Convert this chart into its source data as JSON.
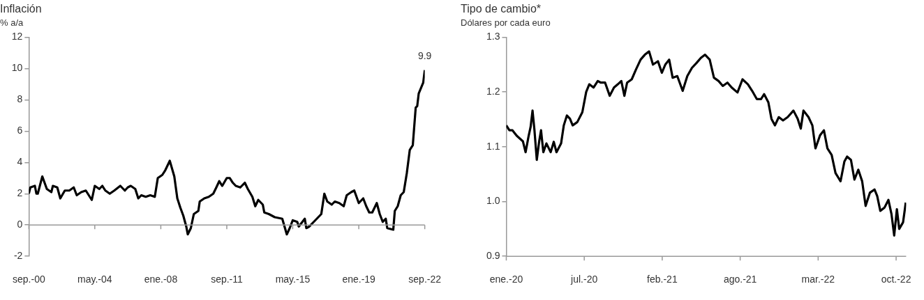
{
  "chart_data": [
    {
      "type": "line",
      "title": "Inflación",
      "subtitle": "% a/a",
      "color": "#000000",
      "x": [
        "2000-09",
        "2000-10",
        "2001-01",
        "2001-02",
        "2001-03",
        "2001-06",
        "2001-09",
        "2001-12",
        "2002-01",
        "2002-04",
        "2002-06",
        "2002-09",
        "2002-12",
        "2003-03",
        "2003-05",
        "2003-08",
        "2003-11",
        "2004-03",
        "2004-05",
        "2004-08",
        "2004-10",
        "2004-12",
        "2005-03",
        "2005-06",
        "2005-10",
        "2006-01",
        "2006-03",
        "2006-05",
        "2006-08",
        "2006-10",
        "2006-12",
        "2007-03",
        "2007-06",
        "2007-09",
        "2007-11",
        "2008-02",
        "2008-04",
        "2008-06",
        "2008-07",
        "2008-10",
        "2008-12",
        "2009-02",
        "2009-04",
        "2009-06",
        "2009-07",
        "2009-09",
        "2009-11",
        "2010-02",
        "2010-03",
        "2010-06",
        "2010-09",
        "2010-12",
        "2011-02",
        "2011-04",
        "2011-06",
        "2011-09",
        "2011-11",
        "2012-01",
        "2012-03",
        "2012-06",
        "2012-09",
        "2012-11",
        "2013-02",
        "2013-04",
        "2013-06",
        "2013-09",
        "2013-10",
        "2014-01",
        "2014-05",
        "2014-10",
        "2015-01",
        "2015-03",
        "2015-05",
        "2015-08",
        "2015-09",
        "2016-01",
        "2016-02",
        "2016-04",
        "2016-07",
        "2016-10",
        "2016-12",
        "2017-02",
        "2017-04",
        "2017-07",
        "2017-09",
        "2017-12",
        "2018-03",
        "2018-05",
        "2018-08",
        "2018-10",
        "2019-01",
        "2019-04",
        "2019-06",
        "2019-08",
        "2019-10",
        "2020-01",
        "2020-03",
        "2020-05",
        "2020-07",
        "2020-08",
        "2020-12",
        "2021-01",
        "2021-03",
        "2021-05",
        "2021-07",
        "2021-09",
        "2021-11",
        "2022-01",
        "2022-03",
        "2022-04",
        "2022-05",
        "2022-08",
        "2022-09"
      ],
      "values": [
        2.0,
        2.4,
        2.5,
        2.0,
        2.0,
        3.1,
        2.3,
        2.1,
        2.5,
        2.4,
        1.7,
        2.2,
        2.2,
        2.4,
        1.9,
        2.1,
        2.2,
        1.6,
        2.5,
        2.3,
        2.5,
        2.2,
        2.0,
        2.2,
        2.5,
        2.2,
        2.4,
        2.5,
        2.3,
        1.7,
        1.9,
        1.8,
        1.9,
        1.8,
        3.0,
        3.2,
        3.5,
        3.9,
        4.1,
        3.1,
        1.7,
        1.1,
        0.6,
        -0.1,
        -0.6,
        -0.2,
        0.7,
        0.9,
        1.5,
        1.7,
        1.8,
        2.0,
        2.4,
        2.8,
        2.5,
        3.0,
        3.0,
        2.7,
        2.5,
        2.4,
        2.7,
        2.3,
        1.8,
        1.2,
        1.6,
        1.3,
        0.8,
        0.7,
        0.5,
        0.4,
        -0.6,
        -0.2,
        0.3,
        0.2,
        -0.1,
        0.4,
        -0.2,
        -0.1,
        0.2,
        0.5,
        0.7,
        2.0,
        1.5,
        1.3,
        1.5,
        1.4,
        1.2,
        1.9,
        2.1,
        2.2,
        1.4,
        1.7,
        1.2,
        0.8,
        0.8,
        1.4,
        0.7,
        0.2,
        0.4,
        -0.2,
        -0.3,
        0.9,
        1.2,
        1.9,
        2.1,
        3.3,
        4.8,
        5.1,
        7.5,
        7.6,
        8.4,
        9.1,
        9.9
      ],
      "value_labels": [
        null,
        null,
        null,
        null,
        null,
        null,
        null,
        null,
        null,
        null,
        null,
        null,
        null,
        null,
        null,
        null,
        null,
        null,
        null,
        null,
        null,
        null,
        null,
        null,
        null,
        null,
        null,
        null,
        null,
        null,
        null,
        null,
        null,
        null,
        null,
        null,
        null,
        null,
        null,
        null,
        null,
        null,
        null,
        null,
        null,
        null,
        null,
        null,
        null,
        null,
        null,
        null,
        null,
        null,
        null,
        null,
        null,
        null,
        null,
        null,
        null,
        null,
        null,
        null,
        null,
        null,
        null,
        null,
        null,
        null,
        null,
        null,
        null,
        null,
        null,
        null,
        null,
        null,
        null,
        null,
        null,
        null,
        null,
        null,
        null,
        null,
        null,
        null,
        null,
        null,
        null,
        null,
        null,
        null,
        null,
        null,
        null,
        null,
        null,
        null,
        null,
        null,
        null,
        null,
        null,
        null,
        null,
        null,
        null,
        null,
        null,
        null,
        "9.9"
      ],
      "xlim": [
        "2000-09",
        "2022-09"
      ],
      "xticks": [
        {
          "value": "2000-09",
          "label": "sep.-00"
        },
        {
          "value": "2004-05",
          "label": "may.-04"
        },
        {
          "value": "2008-01",
          "label": "ene.-08"
        },
        {
          "value": "2011-09",
          "label": "sep.-11"
        },
        {
          "value": "2015-05",
          "label": "may.-15"
        },
        {
          "value": "2019-01",
          "label": "ene.-19"
        },
        {
          "value": "2022-09",
          "label": "sep.-22"
        }
      ],
      "ylim": [
        -2,
        12
      ],
      "yticks": [
        -2,
        0,
        2,
        4,
        6,
        8,
        10,
        12
      ]
    },
    {
      "type": "line",
      "title": "Tipo de cambio*",
      "subtitle": "Dólares por cada euro",
      "color": "#000000",
      "x": [
        "2020-01-02",
        "2020-01-10",
        "2020-01-18",
        "2020-01-29",
        "2020-02-06",
        "2020-02-14",
        "2020-02-21",
        "2020-02-29",
        "2020-03-05",
        "2020-03-10",
        "2020-03-15",
        "2020-03-21",
        "2020-03-27",
        "2020-04-01",
        "2020-04-07",
        "2020-04-15",
        "2020-04-26",
        "2020-05-04",
        "2020-05-11",
        "2020-05-23",
        "2020-05-30",
        "2020-06-07",
        "2020-06-15",
        "2020-06-22",
        "2020-07-04",
        "2020-07-17",
        "2020-07-27",
        "2020-08-04",
        "2020-08-15",
        "2020-08-26",
        "2020-09-03",
        "2020-09-14",
        "2020-09-26",
        "2020-10-07",
        "2020-10-17",
        "2020-10-26",
        "2020-11-03",
        "2020-11-10",
        "2020-11-22",
        "2020-12-03",
        "2020-12-15",
        "2020-12-26",
        "2021-01-06",
        "2021-01-16",
        "2021-01-29",
        "2021-02-08",
        "2021-02-17",
        "2021-02-27",
        "2021-03-08",
        "2021-03-20",
        "2021-04-03",
        "2021-04-15",
        "2021-04-27",
        "2021-05-09",
        "2021-05-20",
        "2021-05-31",
        "2021-06-12",
        "2021-06-23",
        "2021-07-05",
        "2021-07-16",
        "2021-07-28",
        "2021-08-08",
        "2021-08-23",
        "2021-09-05",
        "2021-09-19",
        "2021-09-30",
        "2021-10-12",
        "2021-10-23",
        "2021-10-31",
        "2021-11-11",
        "2021-11-19",
        "2021-11-28",
        "2021-12-08",
        "2021-12-19",
        "2021-12-31",
        "2022-01-15",
        "2022-01-26",
        "2022-02-03",
        "2022-02-10",
        "2022-02-23",
        "2022-03-05",
        "2022-03-13",
        "2022-03-25",
        "2022-04-04",
        "2022-04-13",
        "2022-04-24",
        "2022-05-04",
        "2022-05-17",
        "2022-05-27",
        "2022-06-03",
        "2022-06-13",
        "2022-06-22",
        "2022-07-02",
        "2022-07-12",
        "2022-07-21",
        "2022-08-01",
        "2022-08-13",
        "2022-08-20",
        "2022-08-28",
        "2022-09-08",
        "2022-09-18",
        "2022-09-26",
        "2022-10-03",
        "2022-10-10",
        "2022-10-16",
        "2022-10-26",
        "2022-11-02"
      ],
      "values": [
        1.139,
        1.13,
        1.13,
        1.12,
        1.115,
        1.11,
        1.09,
        1.12,
        1.136,
        1.166,
        1.13,
        1.076,
        1.109,
        1.13,
        1.09,
        1.106,
        1.09,
        1.109,
        1.09,
        1.106,
        1.139,
        1.157,
        1.151,
        1.139,
        1.145,
        1.163,
        1.2,
        1.214,
        1.208,
        1.22,
        1.217,
        1.217,
        1.193,
        1.208,
        1.214,
        1.22,
        1.193,
        1.217,
        1.223,
        1.241,
        1.259,
        1.268,
        1.274,
        1.25,
        1.256,
        1.235,
        1.25,
        1.259,
        1.226,
        1.229,
        1.202,
        1.229,
        1.244,
        1.253,
        1.262,
        1.268,
        1.259,
        1.226,
        1.22,
        1.211,
        1.217,
        1.208,
        1.199,
        1.223,
        1.214,
        1.202,
        1.187,
        1.187,
        1.196,
        1.181,
        1.151,
        1.139,
        1.154,
        1.148,
        1.154,
        1.166,
        1.151,
        1.133,
        1.166,
        1.154,
        1.139,
        1.097,
        1.121,
        1.13,
        1.097,
        1.085,
        1.052,
        1.037,
        1.073,
        1.082,
        1.076,
        1.04,
        1.058,
        1.037,
        0.992,
        1.016,
        1.022,
        1.01,
        0.983,
        0.989,
        1.003,
        0.977,
        0.938,
        0.986,
        0.95,
        0.962,
        0.998
      ],
      "xlim": [
        "2020-01-02",
        "2022-11-03"
      ],
      "xticks": [
        {
          "value": "2020-01-02",
          "label": "ene.-20"
        },
        {
          "value": "2020-07-22",
          "label": "jul.-20"
        },
        {
          "value": "2021-02-09",
          "label": "feb.-21"
        },
        {
          "value": "2021-08-30",
          "label": "ago.-21"
        },
        {
          "value": "2022-03-20",
          "label": "mar.-22"
        },
        {
          "value": "2022-10-08",
          "label": "oct.-22"
        }
      ],
      "ylim": [
        0.9,
        1.3
      ],
      "yticks": [
        {
          "value": 0.9,
          "label": "0.9"
        },
        {
          "value": 1.0,
          "label": "1.0"
        },
        {
          "value": 1.1,
          "label": "1.1"
        },
        {
          "value": 1.2,
          "label": "1.2"
        },
        {
          "value": 1.3,
          "label": "1.3"
        }
      ]
    }
  ]
}
